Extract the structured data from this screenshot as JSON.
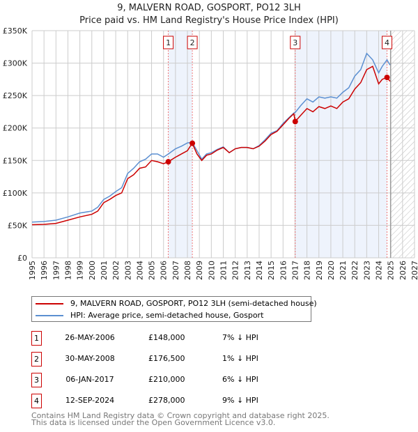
{
  "chart_data": {
    "type": "line",
    "title": "9, MALVERN ROAD, GOSPORT, PO12 3LH",
    "subtitle": "Price paid vs. HM Land Registry's House Price Index (HPI)",
    "xlim": [
      1995,
      2027
    ],
    "ylim": [
      0,
      350000
    ],
    "y_ticks": [
      {
        "v": 0,
        "label": "£0"
      },
      {
        "v": 50000,
        "label": "£50K"
      },
      {
        "v": 100000,
        "label": "£100K"
      },
      {
        "v": 150000,
        "label": "£150K"
      },
      {
        "v": 200000,
        "label": "£200K"
      },
      {
        "v": 250000,
        "label": "£250K"
      },
      {
        "v": 300000,
        "label": "£300K"
      },
      {
        "v": 350000,
        "label": "£350K"
      }
    ],
    "x_ticks": [
      "1995",
      "1996",
      "1997",
      "1998",
      "1999",
      "2000",
      "2001",
      "2002",
      "2003",
      "2004",
      "2005",
      "2006",
      "2007",
      "2008",
      "2009",
      "2010",
      "2011",
      "2012",
      "2013",
      "2014",
      "2015",
      "2016",
      "2017",
      "2018",
      "2019",
      "2020",
      "2021",
      "2022",
      "2023",
      "2024",
      "2025",
      "2026",
      "2027"
    ],
    "grid": true,
    "colors": {
      "property": "#cc0000",
      "hpi": "#5b8fd1",
      "shade": "#eef3fc"
    },
    "shaded_ranges": [
      [
        2006.4,
        2008.41
      ],
      [
        2017.02,
        2024.7
      ]
    ],
    "forecast_start": 2025.0,
    "series": [
      {
        "name": "9, MALVERN ROAD, GOSPORT, PO12 3LH (semi-detached house)",
        "color": "#cc0000",
        "x": [
          1995,
          1996,
          1997,
          1998,
          1999,
          2000,
          2000.5,
          2001,
          2001.5,
          2002,
          2002.5,
          2003,
          2003.5,
          2004,
          2004.5,
          2005,
          2005.5,
          2006,
          2006.4,
          2007,
          2007.5,
          2008,
          2008.4,
          2008.8,
          2009.2,
          2009.6,
          2010,
          2010.5,
          2011,
          2011.5,
          2012,
          2012.5,
          2013,
          2013.5,
          2014,
          2014.5,
          2015,
          2015.5,
          2016,
          2016.5,
          2016.9,
          2017.02,
          2017.5,
          2018,
          2018.5,
          2019,
          2019.5,
          2020,
          2020.5,
          2021,
          2021.5,
          2022,
          2022.5,
          2023,
          2023.5,
          2024,
          2024.3,
          2024.7,
          2024.95
        ],
        "y": [
          51000,
          51500,
          53000,
          58000,
          63000,
          67000,
          72000,
          85000,
          90000,
          96000,
          100000,
          122000,
          128000,
          138000,
          140000,
          150000,
          148000,
          145000,
          148000,
          155000,
          160000,
          165000,
          176500,
          160000,
          150000,
          158000,
          160000,
          166000,
          170000,
          162000,
          168000,
          170000,
          170000,
          168000,
          172000,
          180000,
          190000,
          195000,
          205000,
          215000,
          222000,
          210000,
          220000,
          230000,
          225000,
          233000,
          230000,
          234000,
          230000,
          240000,
          245000,
          260000,
          270000,
          290000,
          295000,
          268000,
          275000,
          278000,
          272000
        ]
      },
      {
        "name": "HPI: Average price, semi-detached house, Gosport",
        "color": "#5b8fd1",
        "x": [
          1995,
          1996,
          1997,
          1998,
          1999,
          2000,
          2000.5,
          2001,
          2001.5,
          2002,
          2002.5,
          2003,
          2003.5,
          2004,
          2004.5,
          2005,
          2005.5,
          2006,
          2006.4,
          2007,
          2007.5,
          2008,
          2008.4,
          2008.8,
          2009.2,
          2009.6,
          2010,
          2010.5,
          2011,
          2011.5,
          2012,
          2012.5,
          2013,
          2013.5,
          2014,
          2014.5,
          2015,
          2015.5,
          2016,
          2016.5,
          2016.9,
          2017.02,
          2017.5,
          2018,
          2018.5,
          2019,
          2019.5,
          2020,
          2020.5,
          2021,
          2021.5,
          2022,
          2022.5,
          2023,
          2023.5,
          2024,
          2024.3,
          2024.7,
          2024.95
        ],
        "y": [
          55000,
          56000,
          58000,
          63000,
          69000,
          72000,
          78000,
          90000,
          95000,
          102000,
          108000,
          130000,
          138000,
          148000,
          152000,
          160000,
          160000,
          155000,
          160000,
          168000,
          172000,
          177000,
          178000,
          165000,
          152000,
          160000,
          162000,
          167000,
          171000,
          162000,
          168000,
          170000,
          170000,
          168000,
          173000,
          182000,
          192000,
          196000,
          207000,
          216000,
          223000,
          224000,
          235000,
          245000,
          240000,
          248000,
          246000,
          248000,
          246000,
          255000,
          262000,
          280000,
          290000,
          315000,
          305000,
          285000,
          295000,
          305000,
          297000
        ]
      }
    ],
    "sales": [
      {
        "id": "1",
        "year": 2006.4,
        "price": 148000,
        "date": "26-MAY-2006",
        "price_label": "£148,000",
        "hpi_label": "7% ↓ HPI"
      },
      {
        "id": "2",
        "year": 2008.41,
        "price": 176500,
        "date": "30-MAY-2008",
        "price_label": "£176,500",
        "hpi_label": "1% ↓ HPI"
      },
      {
        "id": "3",
        "year": 2017.02,
        "price": 210000,
        "date": "06-JAN-2017",
        "price_label": "£210,000",
        "hpi_label": "6% ↓ HPI"
      },
      {
        "id": "4",
        "year": 2024.7,
        "price": 278000,
        "date": "12-SEP-2024",
        "price_label": "£278,000",
        "hpi_label": "9% ↓ HPI"
      }
    ]
  },
  "legend": {
    "property": "9, MALVERN ROAD, GOSPORT, PO12 3LH (semi-detached house)",
    "hpi": "HPI: Average price, semi-detached house, Gosport"
  },
  "footer": {
    "line1": "Contains HM Land Registry data © Crown copyright and database right 2025.",
    "line2": "This data is licensed under the Open Government Licence v3.0."
  }
}
